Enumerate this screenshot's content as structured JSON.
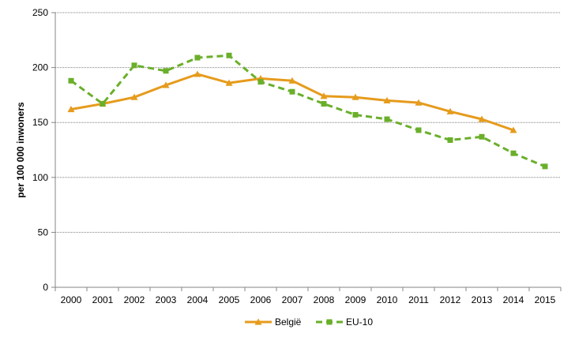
{
  "chart_data": {
    "type": "line",
    "title": "",
    "xlabel": "",
    "ylabel": "per 100 000 inwoners",
    "ylim": [
      0,
      250
    ],
    "yticks": [
      0,
      50,
      100,
      150,
      200,
      250
    ],
    "grid": true,
    "legend_position": "bottom",
    "categories": [
      "2000",
      "2001",
      "2002",
      "2003",
      "2004",
      "2005",
      "2006",
      "2007",
      "2008",
      "2009",
      "2010",
      "2011",
      "2012",
      "2013",
      "2014",
      "2015"
    ],
    "series": [
      {
        "name": "België",
        "color": "#E69B1C",
        "line_style": "solid",
        "marker": "triangle",
        "values": [
          162,
          167,
          173,
          184,
          194,
          186,
          190,
          188,
          174,
          173,
          170,
          168,
          160,
          153,
          143,
          null
        ]
      },
      {
        "name": "EU-10",
        "color": "#6AAF2A",
        "line_style": "dashed",
        "marker": "square",
        "values": [
          188,
          167,
          202,
          197,
          209,
          211,
          187,
          178,
          167,
          157,
          153,
          143,
          134,
          137,
          122,
          110
        ]
      }
    ]
  }
}
